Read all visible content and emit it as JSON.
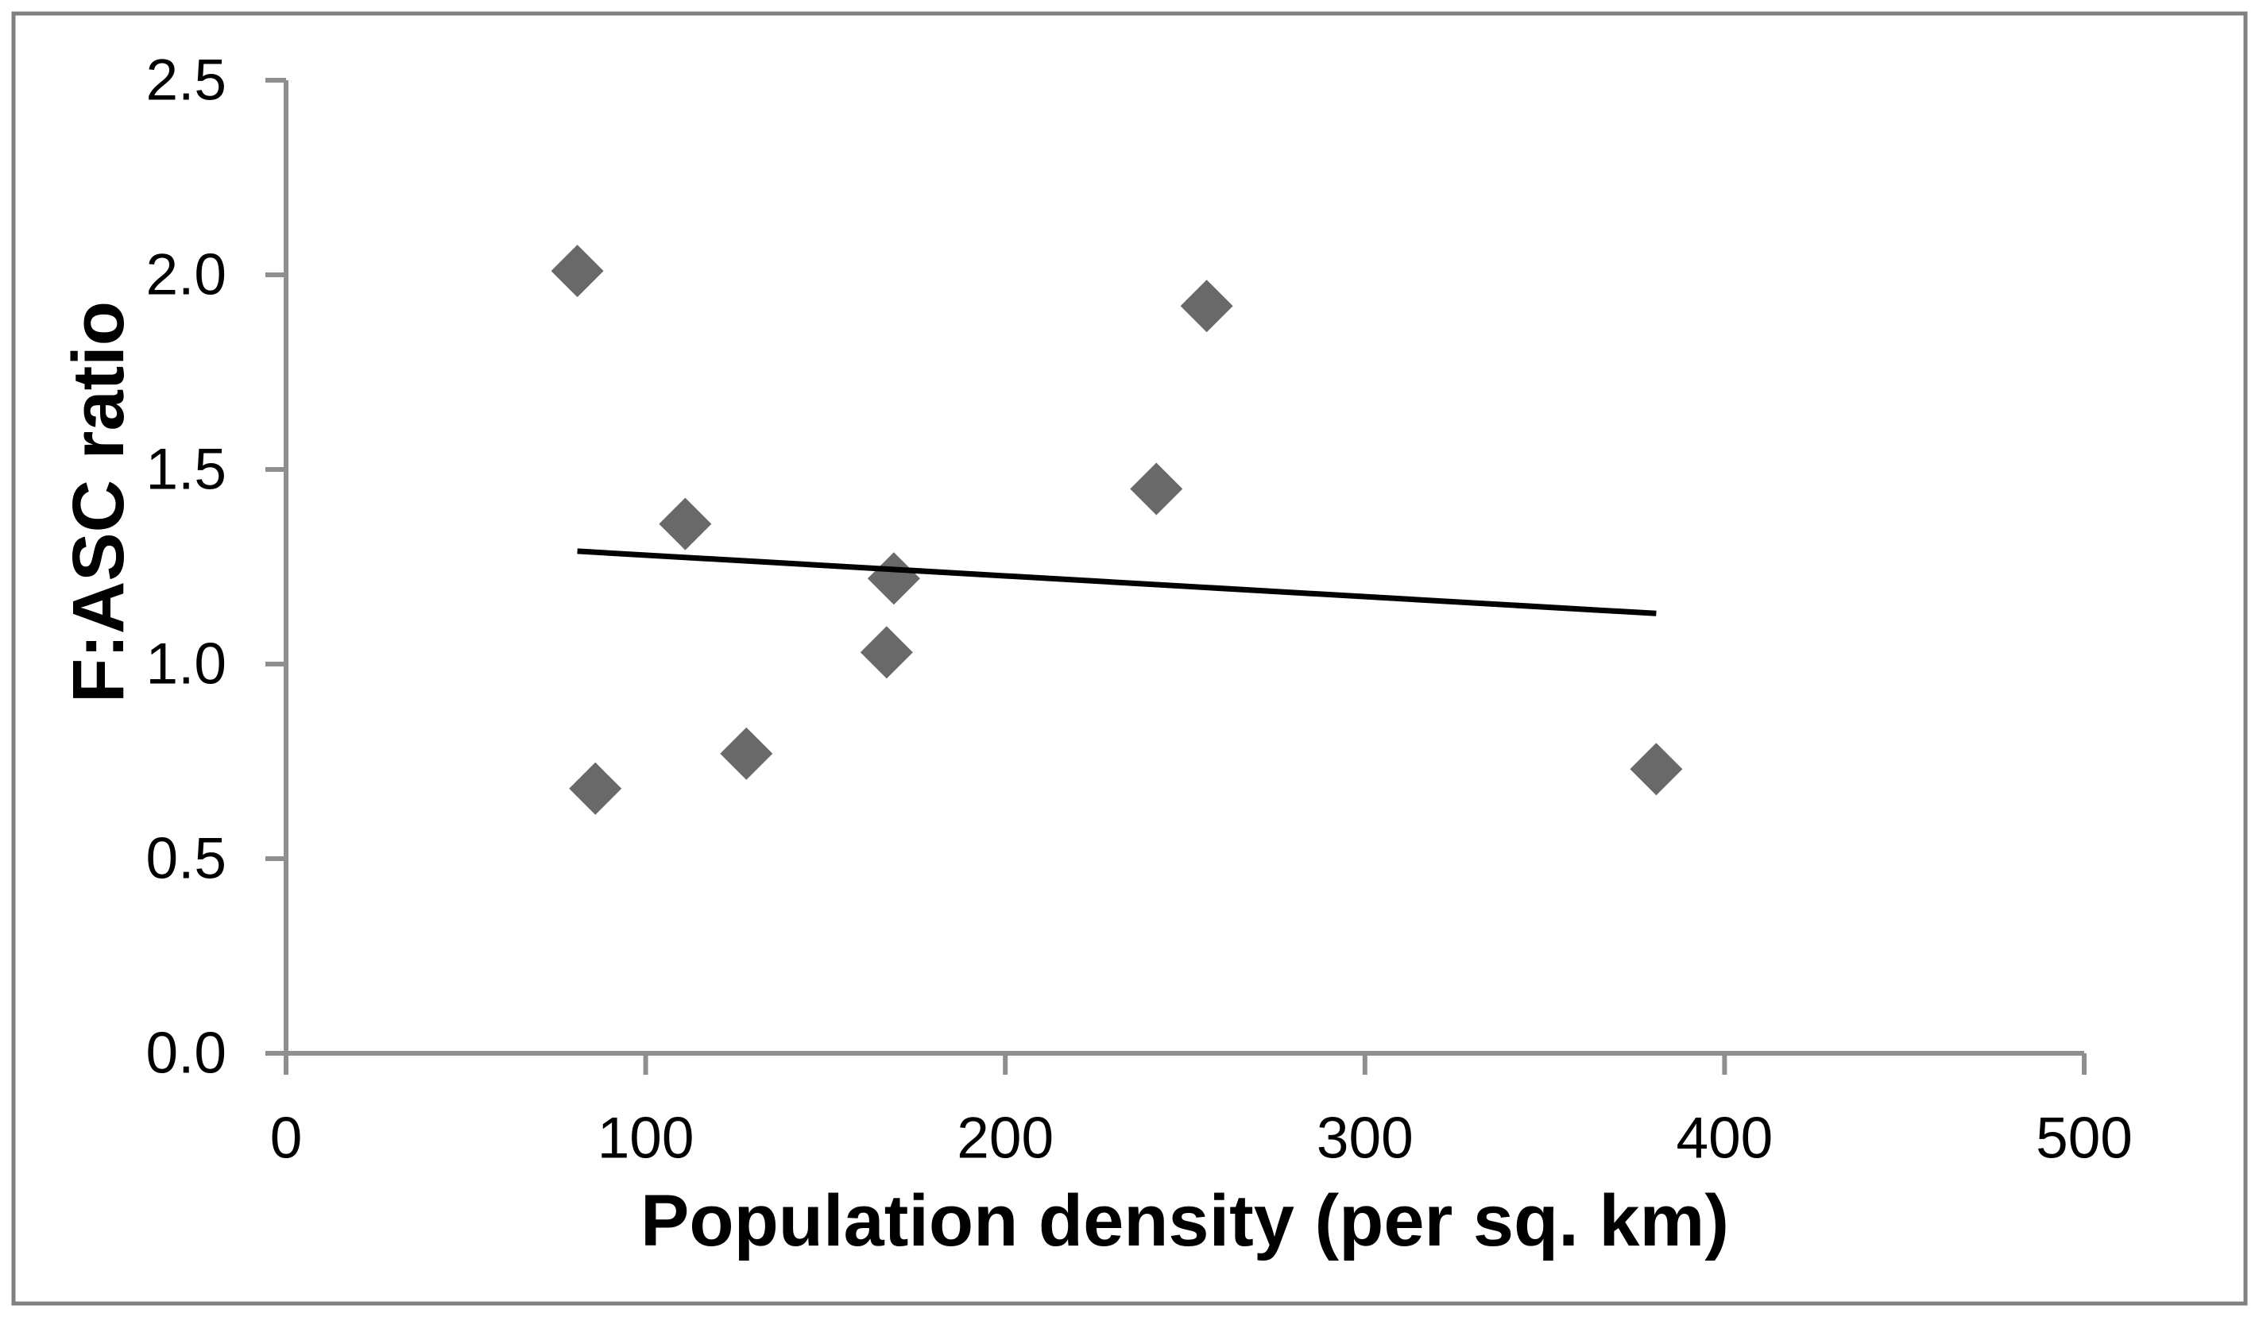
{
  "chart_data": {
    "type": "scatter",
    "title": "",
    "xlabel": "Population density (per sq. km)",
    "ylabel": "F:ASC ratio",
    "xlim": [
      0,
      500
    ],
    "ylim": [
      0.0,
      2.5
    ],
    "x_ticks": [
      0,
      100,
      200,
      300,
      400,
      500
    ],
    "x_tick_labels": [
      "0",
      "100",
      "200",
      "300",
      "400",
      "500"
    ],
    "y_ticks": [
      0.0,
      0.5,
      1.0,
      1.5,
      2.0,
      2.5
    ],
    "y_tick_labels": [
      "0.0",
      "0.5",
      "1.0",
      "1.5",
      "2.0",
      "2.5"
    ],
    "grid": false,
    "legend": false,
    "series": [
      {
        "marker": "diamond",
        "color": "#696969",
        "points": [
          {
            "x": 81,
            "y": 2.01
          },
          {
            "x": 86,
            "y": 0.68
          },
          {
            "x": 111,
            "y": 1.36
          },
          {
            "x": 128,
            "y": 0.77
          },
          {
            "x": 167,
            "y": 1.03
          },
          {
            "x": 169,
            "y": 1.22
          },
          {
            "x": 242,
            "y": 1.45
          },
          {
            "x": 256,
            "y": 1.92
          },
          {
            "x": 381,
            "y": 0.73
          }
        ]
      }
    ],
    "trendline": {
      "type": "linear",
      "color": "#000000",
      "x1": 81,
      "y1": 1.29,
      "x2": 381,
      "y2": 1.13
    },
    "colors": {
      "background": "#FFFFFF",
      "axis": "#8E8E8E",
      "frame": "#808080",
      "text": "#000000",
      "marker": "#696969",
      "trend": "#000000"
    }
  }
}
